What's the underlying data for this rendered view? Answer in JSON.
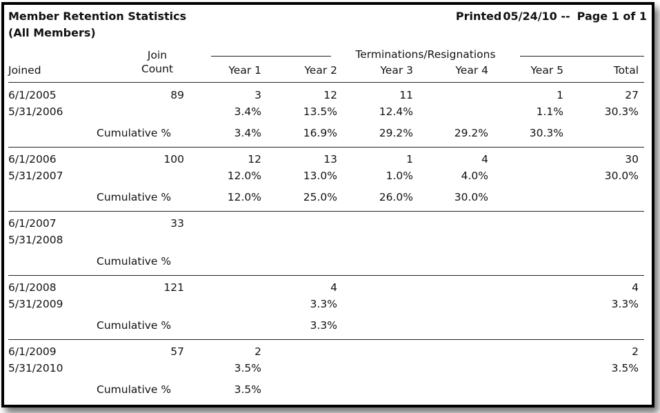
{
  "report": {
    "title": "Member Retention Statistics",
    "subtitle": "(All Members)",
    "printed_label": "Printed",
    "printed_date": "05/24/10 --",
    "page_info": "Page 1 of 1"
  },
  "header": {
    "joined": "Joined",
    "join_line1": "Join",
    "join_line2": "Count",
    "group": "Terminations/Resignations",
    "year1": "Year 1",
    "year2": "Year 2",
    "year3": "Year 3",
    "year4": "Year 4",
    "year5": "Year 5",
    "total": "Total"
  },
  "groups": [
    {
      "start": "6/1/2005",
      "end": "5/31/2006",
      "count": "89",
      "counts": [
        "3",
        "12",
        "11",
        "",
        "1",
        "27"
      ],
      "pcts": [
        "3.4%",
        "13.5%",
        "12.4%",
        "",
        "1.1%",
        "30.3%"
      ],
      "cum_label": "Cumulative %",
      "cums": [
        "3.4%",
        "16.9%",
        "29.2%",
        "29.2%",
        "30.3%",
        ""
      ]
    },
    {
      "start": "6/1/2006",
      "end": "5/31/2007",
      "count": "100",
      "counts": [
        "12",
        "13",
        "1",
        "4",
        "",
        "30"
      ],
      "pcts": [
        "12.0%",
        "13.0%",
        "1.0%",
        "4.0%",
        "",
        "30.0%"
      ],
      "cum_label": "Cumulative %",
      "cums": [
        "12.0%",
        "25.0%",
        "26.0%",
        "30.0%",
        "",
        ""
      ]
    },
    {
      "start": "6/1/2007",
      "end": "5/31/2008",
      "count": "33",
      "counts": [
        "",
        "",
        "",
        "",
        "",
        ""
      ],
      "pcts": [
        "",
        "",
        "",
        "",
        "",
        ""
      ],
      "cum_label": "Cumulative %",
      "cums": [
        "",
        "",
        "",
        "",
        "",
        ""
      ]
    },
    {
      "start": "6/1/2008",
      "end": "5/31/2009",
      "count": "121",
      "counts": [
        "",
        "4",
        "",
        "",
        "",
        "4"
      ],
      "pcts": [
        "",
        "3.3%",
        "",
        "",
        "",
        "3.3%"
      ],
      "cum_label": "Cumulative %",
      "cums": [
        "",
        "3.3%",
        "",
        "",
        "",
        ""
      ]
    },
    {
      "start": "6/1/2009",
      "end": "5/31/2010",
      "count": "57",
      "counts": [
        "2",
        "",
        "",
        "",
        "",
        "2"
      ],
      "pcts": [
        "3.5%",
        "",
        "",
        "",
        "",
        "3.5%"
      ],
      "cum_label": "Cumulative %",
      "cums": [
        "3.5%",
        "",
        "",
        "",
        "",
        ""
      ]
    }
  ]
}
